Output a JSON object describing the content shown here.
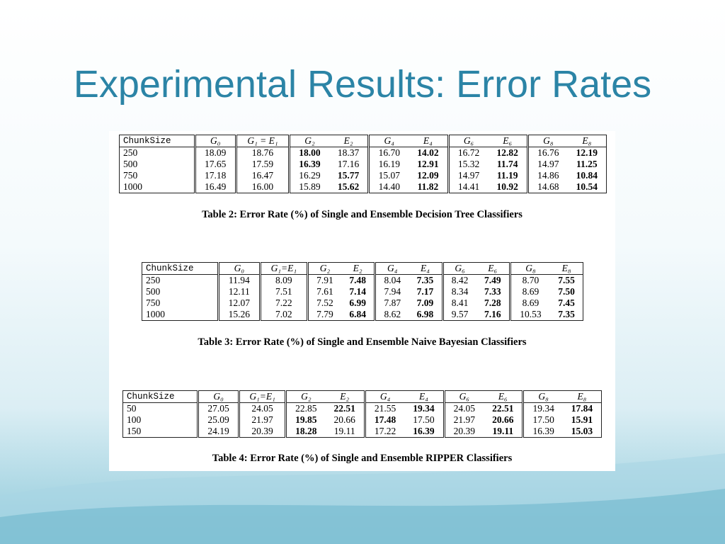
{
  "title": "Experimental Results: Error Rates",
  "tables": [
    {
      "header": [
        "ChunkSize",
        "G₀",
        "G₁ = E₁",
        "G₂",
        "E₂",
        "G₄",
        "E₄",
        "G₆",
        "E₆",
        "G₈",
        "E₈"
      ],
      "rows": [
        [
          "250",
          "18.09",
          "18.76",
          "18.00",
          "18.37",
          "16.70",
          "14.02",
          "16.72",
          "12.82",
          "16.76",
          "12.19"
        ],
        [
          "500",
          "17.65",
          "17.59",
          "16.39",
          "17.16",
          "16.19",
          "12.91",
          "15.32",
          "11.74",
          "14.97",
          "11.25"
        ],
        [
          "750",
          "17.18",
          "16.47",
          "16.29",
          "15.77",
          "15.07",
          "12.09",
          "14.97",
          "11.19",
          "14.86",
          "10.84"
        ],
        [
          "1000",
          "16.49",
          "16.00",
          "15.89",
          "15.62",
          "14.40",
          "11.82",
          "14.41",
          "10.92",
          "14.68",
          "10.54"
        ]
      ],
      "bold_columns": [
        [
          3,
          6,
          8,
          10
        ],
        [
          3,
          6,
          8,
          10
        ],
        [
          4,
          6,
          8,
          10
        ],
        [
          4,
          6,
          8,
          10
        ]
      ],
      "caption": "Table 2: Error Rate (%) of Single and Ensemble Decision Tree Classifiers"
    },
    {
      "header": [
        "ChunkSize",
        "G₀",
        "G₁=E₁",
        "G₂",
        "E₂",
        "G₄",
        "E₄",
        "G₆",
        "E₆",
        "G₈",
        "E₈"
      ],
      "rows": [
        [
          "250",
          "11.94",
          "8.09",
          "7.91",
          "7.48",
          "8.04",
          "7.35",
          "8.42",
          "7.49",
          "8.70",
          "7.55"
        ],
        [
          "500",
          "12.11",
          "7.51",
          "7.61",
          "7.14",
          "7.94",
          "7.17",
          "8.34",
          "7.33",
          "8.69",
          "7.50"
        ],
        [
          "750",
          "12.07",
          "7.22",
          "7.52",
          "6.99",
          "7.87",
          "7.09",
          "8.41",
          "7.28",
          "8.69",
          "7.45"
        ],
        [
          "1000",
          "15.26",
          "7.02",
          "7.79",
          "6.84",
          "8.62",
          "6.98",
          "9.57",
          "7.16",
          "10.53",
          "7.35"
        ]
      ],
      "bold_columns": [
        [
          4,
          6,
          8,
          10
        ],
        [
          4,
          6,
          8,
          10
        ],
        [
          4,
          6,
          8,
          10
        ],
        [
          4,
          6,
          8,
          10
        ]
      ],
      "caption": "Table 3: Error Rate (%) of Single and Ensemble Naive Bayesian Classifiers"
    },
    {
      "header": [
        "ChunkSize",
        "G₀",
        "G₁=E₁",
        "G₂",
        "E₂",
        "G₄",
        "E₄",
        "G₆",
        "E₆",
        "G₈",
        "E₈"
      ],
      "rows": [
        [
          "50",
          "27.05",
          "24.05",
          "22.85",
          "22.51",
          "21.55",
          "19.34",
          "24.05",
          "22.51",
          "19.34",
          "17.84"
        ],
        [
          "100",
          "25.09",
          "21.97",
          "19.85",
          "20.66",
          "17.48",
          "17.50",
          "21.97",
          "20.66",
          "17.50",
          "15.91"
        ],
        [
          "150",
          "24.19",
          "20.39",
          "18.28",
          "19.11",
          "17.22",
          "16.39",
          "20.39",
          "19.11",
          "16.39",
          "15.03"
        ]
      ],
      "bold_columns": [
        [
          4,
          6,
          8,
          10
        ],
        [
          3,
          5,
          8,
          10
        ],
        [
          3,
          6,
          8,
          10
        ]
      ],
      "caption": "Table 4: Error Rate (%) of Single and Ensemble RIPPER Classifiers"
    }
  ]
}
